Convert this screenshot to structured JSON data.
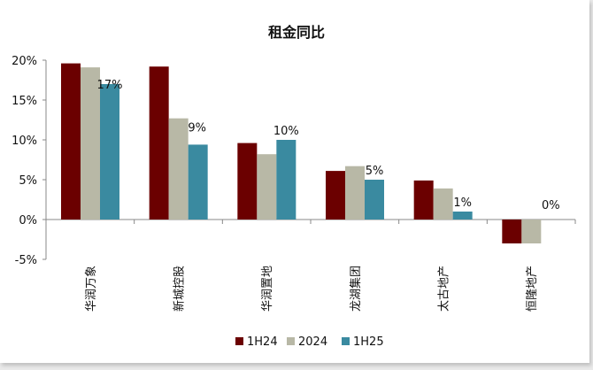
{
  "chart_data": {
    "type": "bar",
    "title": "租金同比",
    "categories": [
      "华润万象",
      "新城控股",
      "华润置地",
      "龙湖集团",
      "太古地产",
      "恒隆地产"
    ],
    "series": [
      {
        "name": "1H24",
        "color": "#6b0000",
        "values": [
          19.6,
          19.2,
          9.6,
          6.1,
          4.9,
          -3.0
        ]
      },
      {
        "name": "2024",
        "color": "#b8b8a6",
        "values": [
          19.1,
          12.7,
          8.2,
          6.7,
          3.9,
          -3.0
        ]
      },
      {
        "name": "1H25",
        "color": "#3a8aa0",
        "values": [
          17,
          9.4,
          10,
          5,
          1,
          0
        ]
      }
    ],
    "data_labels": [
      "17%",
      "9%",
      "10%",
      "5%",
      "1%",
      "0%"
    ],
    "yticks": [
      "20%",
      "15%",
      "10%",
      "5%",
      "0%",
      "-5%"
    ],
    "ytick_values": [
      20,
      15,
      10,
      5,
      0,
      -5
    ],
    "ylim": [
      -5,
      20
    ],
    "legend_position": "bottom",
    "grid": false
  }
}
